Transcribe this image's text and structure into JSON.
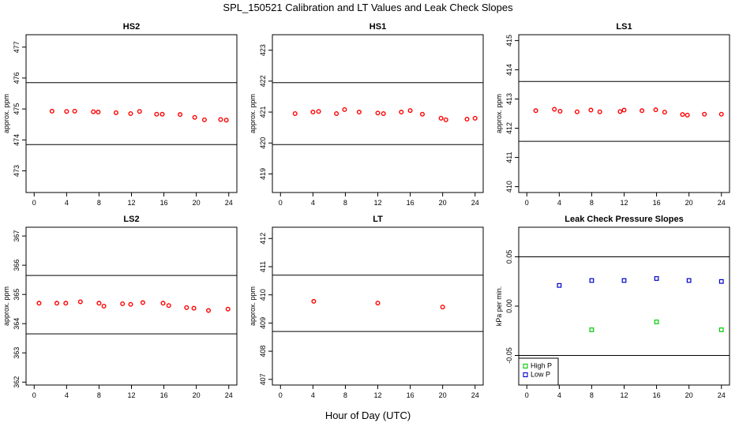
{
  "figure": {
    "title": "SPL_150521  Calibration and LT Values and Leak Check Slopes",
    "xlabel": "Hour of Day (UTC)"
  },
  "colors": {
    "red": "#ff0000",
    "green": "#00cc00",
    "blue": "#0000cc",
    "black": "#000000"
  },
  "chart_data": [
    {
      "type": "scatter",
      "title": "HS2",
      "ylabel": "approx. ppm",
      "xlim": [
        -1,
        25
      ],
      "ylim": [
        472.3,
        477.4
      ],
      "xticks": [
        "0",
        "4",
        "8",
        "12",
        "16",
        "20",
        "24"
      ],
      "yticks": [
        "473",
        "474",
        "475",
        "476",
        "477"
      ],
      "hlines": [
        473.85,
        475.85
      ],
      "series": [
        {
          "color": "red",
          "points": [
            [
              2.2,
              474.93
            ],
            [
              4.0,
              474.92
            ],
            [
              5.0,
              474.93
            ],
            [
              7.3,
              474.91
            ],
            [
              7.9,
              474.9
            ],
            [
              10.1,
              474.88
            ],
            [
              11.9,
              474.85
            ],
            [
              13.0,
              474.92
            ],
            [
              15.1,
              474.83
            ],
            [
              15.8,
              474.83
            ],
            [
              18.0,
              474.82
            ],
            [
              19.8,
              474.73
            ],
            [
              21.0,
              474.65
            ],
            [
              23.0,
              474.66
            ],
            [
              23.7,
              474.64
            ]
          ]
        }
      ]
    },
    {
      "type": "scatter",
      "title": "HS1",
      "ylabel": "approx. ppm",
      "xlim": [
        -1,
        25
      ],
      "ylim": [
        418.4,
        423.5
      ],
      "xticks": [
        "0",
        "4",
        "8",
        "12",
        "16",
        "20",
        "24"
      ],
      "yticks": [
        "419",
        "420",
        "421",
        "422",
        "423"
      ],
      "hlines": [
        419.95,
        421.95
      ],
      "series": [
        {
          "color": "red",
          "points": [
            [
              1.8,
              420.95
            ],
            [
              4.0,
              421.0
            ],
            [
              4.7,
              421.02
            ],
            [
              6.9,
              420.95
            ],
            [
              7.9,
              421.08
            ],
            [
              9.7,
              421.0
            ],
            [
              12.0,
              420.97
            ],
            [
              12.7,
              420.95
            ],
            [
              14.9,
              421.0
            ],
            [
              16.0,
              421.05
            ],
            [
              17.5,
              420.93
            ],
            [
              19.8,
              420.8
            ],
            [
              20.4,
              420.75
            ],
            [
              23.0,
              420.77
            ],
            [
              24.0,
              420.8
            ]
          ]
        }
      ]
    },
    {
      "type": "scatter",
      "title": "LS1",
      "ylabel": "approx. ppm",
      "xlim": [
        -1,
        25
      ],
      "ylim": [
        409.8,
        415.2
      ],
      "xticks": [
        "0",
        "4",
        "8",
        "12",
        "16",
        "20",
        "24"
      ],
      "yticks": [
        "410",
        "411",
        "412",
        "413",
        "414",
        "415"
      ],
      "hlines": [
        411.55,
        413.6
      ],
      "series": [
        {
          "color": "red",
          "points": [
            [
              1.1,
              412.6
            ],
            [
              3.4,
              412.65
            ],
            [
              4.1,
              412.58
            ],
            [
              6.2,
              412.56
            ],
            [
              7.9,
              412.62
            ],
            [
              9.0,
              412.56
            ],
            [
              11.5,
              412.57
            ],
            [
              12.0,
              412.62
            ],
            [
              14.2,
              412.6
            ],
            [
              15.9,
              412.63
            ],
            [
              17.0,
              412.55
            ],
            [
              19.2,
              412.47
            ],
            [
              19.8,
              412.45
            ],
            [
              21.9,
              412.48
            ],
            [
              24.0,
              412.48
            ]
          ]
        }
      ]
    },
    {
      "type": "scatter",
      "title": "LS2",
      "ylabel": "approx. ppm",
      "xlim": [
        -1,
        25
      ],
      "ylim": [
        361.9,
        367.3
      ],
      "xticks": [
        "0",
        "4",
        "8",
        "12",
        "16",
        "20",
        "24"
      ],
      "yticks": [
        "362",
        "363",
        "364",
        "365",
        "366",
        "367"
      ],
      "hlines": [
        363.65,
        365.65
      ],
      "series": [
        {
          "color": "red",
          "points": [
            [
              0.6,
              364.7
            ],
            [
              2.8,
              364.7
            ],
            [
              3.9,
              364.7
            ],
            [
              5.7,
              364.75
            ],
            [
              8.0,
              364.7
            ],
            [
              8.6,
              364.6
            ],
            [
              10.9,
              364.68
            ],
            [
              11.9,
              364.66
            ],
            [
              13.4,
              364.72
            ],
            [
              15.9,
              364.7
            ],
            [
              16.6,
              364.62
            ],
            [
              18.8,
              364.55
            ],
            [
              19.7,
              364.53
            ],
            [
              21.5,
              364.45
            ],
            [
              23.9,
              364.5
            ]
          ]
        }
      ]
    },
    {
      "type": "scatter",
      "title": "LT",
      "ylabel": "approx. ppm",
      "xlim": [
        -1,
        25
      ],
      "ylim": [
        406.8,
        412.4
      ],
      "xticks": [
        "0",
        "4",
        "8",
        "12",
        "16",
        "20",
        "24"
      ],
      "yticks": [
        "407",
        "408",
        "409",
        "410",
        "411",
        "412"
      ],
      "hlines": [
        408.7,
        410.7
      ],
      "series": [
        {
          "color": "red",
          "points": [
            [
              4.1,
              409.77
            ],
            [
              12.0,
              409.71
            ],
            [
              20.0,
              409.57
            ]
          ]
        }
      ]
    },
    {
      "type": "scatter",
      "title": "Leak Check Pressure Slopes",
      "ylabel": "kPa per min.",
      "xlim": [
        -1,
        25
      ],
      "ylim": [
        -0.08,
        0.08
      ],
      "xticks": [
        "0",
        "4",
        "8",
        "12",
        "16",
        "20",
        "24"
      ],
      "yticks": [
        "-0.05",
        "0.00",
        "0.05"
      ],
      "hlines": [
        -0.05,
        0.05
      ],
      "legend": {
        "position": "bottom-left",
        "entries": [
          "High P",
          "Low P"
        ]
      },
      "series": [
        {
          "name": "High P",
          "color": "green",
          "points": [
            [
              8.0,
              -0.024
            ],
            [
              16.0,
              -0.016
            ],
            [
              24.0,
              -0.024
            ]
          ]
        },
        {
          "name": "Low P",
          "color": "blue",
          "points": [
            [
              4.0,
              0.021
            ],
            [
              8.0,
              0.026
            ],
            [
              12.0,
              0.026
            ],
            [
              16.0,
              0.028
            ],
            [
              20.0,
              0.026
            ],
            [
              24.0,
              0.025
            ]
          ]
        }
      ]
    }
  ]
}
